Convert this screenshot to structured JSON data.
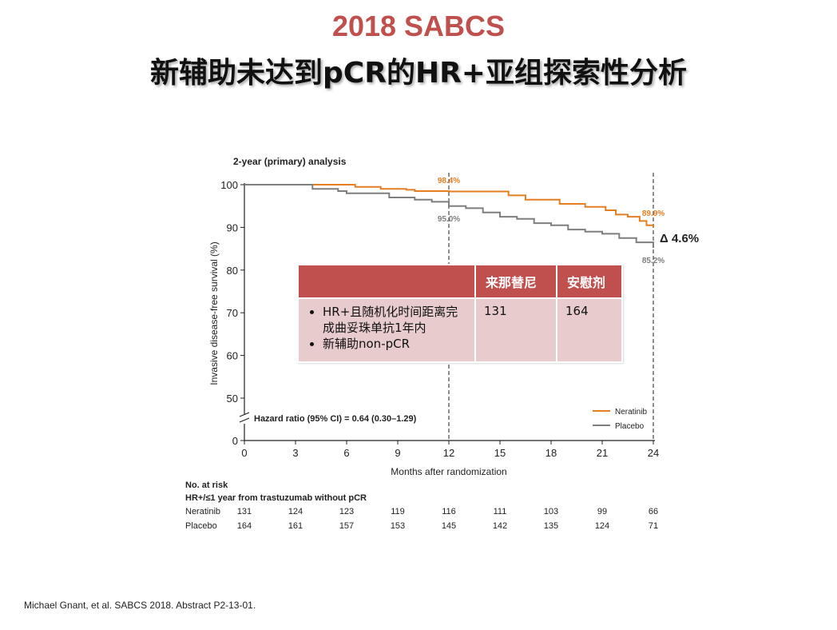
{
  "slide": {
    "title_line1": "2018 SABCS",
    "title_line2": "新辅助未达到pCR的HR+亚组探索性分析",
    "footnote": "Michael Gnant, et al. SABCS 2018. Abstract P2-13-01."
  },
  "table": {
    "headers": [
      "",
      "来那替尼",
      "安慰剂"
    ],
    "row_bullets": [
      "HR+且随机化时间距离完成曲妥珠单抗1年内",
      "新辅助non-pCR"
    ],
    "row_values": [
      "131",
      "164"
    ]
  },
  "chart_data": {
    "type": "line",
    "title": "2-year (primary) analysis",
    "xlabel": "Months after randomization",
    "ylabel": "Invasive disease-free survival (%)",
    "xlim": [
      0,
      24
    ],
    "xticks": [
      0,
      3,
      6,
      9,
      12,
      15,
      18,
      21,
      24
    ],
    "ylim": [
      0,
      100
    ],
    "yticks": [
      0,
      50,
      60,
      70,
      80,
      90,
      100
    ],
    "axis_break": true,
    "legend_position": "bottom-right",
    "colors": {
      "neratinib": "#e57e22",
      "placebo": "#7f7f7f"
    },
    "series": [
      {
        "name": "Neratinib",
        "color": "#e57e22",
        "x": [
          0,
          3,
          6.5,
          8,
          9.5,
          10,
          12,
          15.5,
          16.5,
          18.5,
          20,
          21.2,
          21.8,
          22.5,
          23.2,
          23.6,
          24
        ],
        "y": [
          100,
          100,
          99.5,
          99,
          98.8,
          98.5,
          98.4,
          97.5,
          96.5,
          95.5,
          94.8,
          94.0,
          93.0,
          92.5,
          91.5,
          90.5,
          89.9
        ]
      },
      {
        "name": "Placebo",
        "color": "#7f7f7f",
        "x": [
          0,
          3,
          4,
          5.5,
          6,
          8.5,
          10,
          11,
          12,
          13,
          14,
          15,
          16,
          17,
          18,
          19,
          20,
          21,
          22,
          23,
          24
        ],
        "y": [
          100,
          100,
          99,
          98.5,
          98,
          97,
          96.5,
          96,
          95.0,
          94.5,
          93.5,
          92.5,
          92,
          91,
          90.5,
          89.5,
          89,
          88.5,
          87.5,
          86.5,
          85.2
        ]
      }
    ],
    "annotations": {
      "neratinib_12": "98.4%",
      "placebo_12": "95.0%",
      "neratinib_24": "89.9%",
      "placebo_24": "85.2%",
      "delta": "Δ 4.6%",
      "hazard_ratio": "Hazard ratio (95% CI) = 0.64 (0.30–1.29)"
    },
    "risk_table": {
      "title": "No. at risk",
      "subtitle": "HR+/≤1 year from trastuzumab without pCR",
      "rows": [
        {
          "label": "Neratinib",
          "values": [
            "131",
            "124",
            "123",
            "119",
            "116",
            "111",
            "103",
            "99",
            "66"
          ]
        },
        {
          "label": "Placebo",
          "values": [
            "164",
            "161",
            "157",
            "153",
            "145",
            "142",
            "135",
            "124",
            "71"
          ]
        }
      ]
    }
  }
}
